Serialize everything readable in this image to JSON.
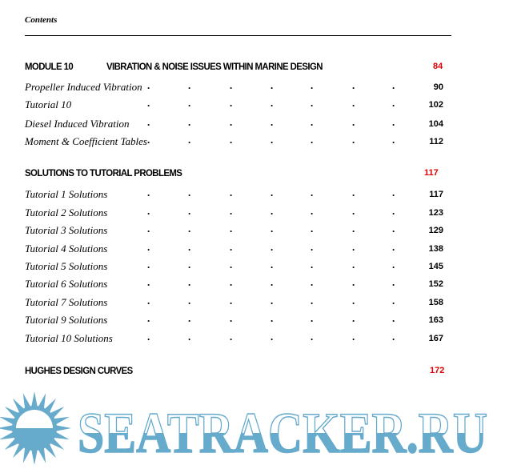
{
  "header": {
    "title": "Contents"
  },
  "sections": [
    {
      "module_label": "MODULE  10",
      "title": "VIBRATION & NOISE ISSUES WITHIN MARINE DESIGN",
      "page": "84",
      "entries": [
        {
          "label": "Propeller Induced Vibration",
          "page": "90"
        },
        {
          "label": "Tutorial 10",
          "page": "102"
        },
        {
          "label": "Diesel Induced Vibration",
          "page": "104"
        },
        {
          "label": "Moment & Coefficient Tables",
          "page": "112"
        }
      ]
    },
    {
      "module_label": "",
      "title": "SOLUTIONS TO TUTORIAL PROBLEMS",
      "page": "117",
      "entries": [
        {
          "label": "Tutorial 1 Solutions",
          "page": "117"
        },
        {
          "label": "Tutorial 2 Solutions",
          "page": "123"
        },
        {
          "label": "Tutorial 3 Solutions",
          "page": "129"
        },
        {
          "label": "Tutorial 4 Solutions",
          "page": "138"
        },
        {
          "label": "Tutorial 5 Solutions",
          "page": "145"
        },
        {
          "label": "Tutorial 6 Solutions",
          "page": "152"
        },
        {
          "label": "Tutorial 7 Solutions",
          "page": "158"
        },
        {
          "label": "Tutorial 9 Solutions",
          "page": "163"
        },
        {
          "label": "Tutorial 10 Solutions",
          "page": "167"
        }
      ]
    },
    {
      "module_label": "",
      "title": "HUGHES DESIGN CURVES",
      "page": "172",
      "entries": []
    }
  ],
  "watermark": {
    "text": "SEATRACKER.RU",
    "color": "#66aacc"
  },
  "colors": {
    "section_page": "#e00000"
  }
}
